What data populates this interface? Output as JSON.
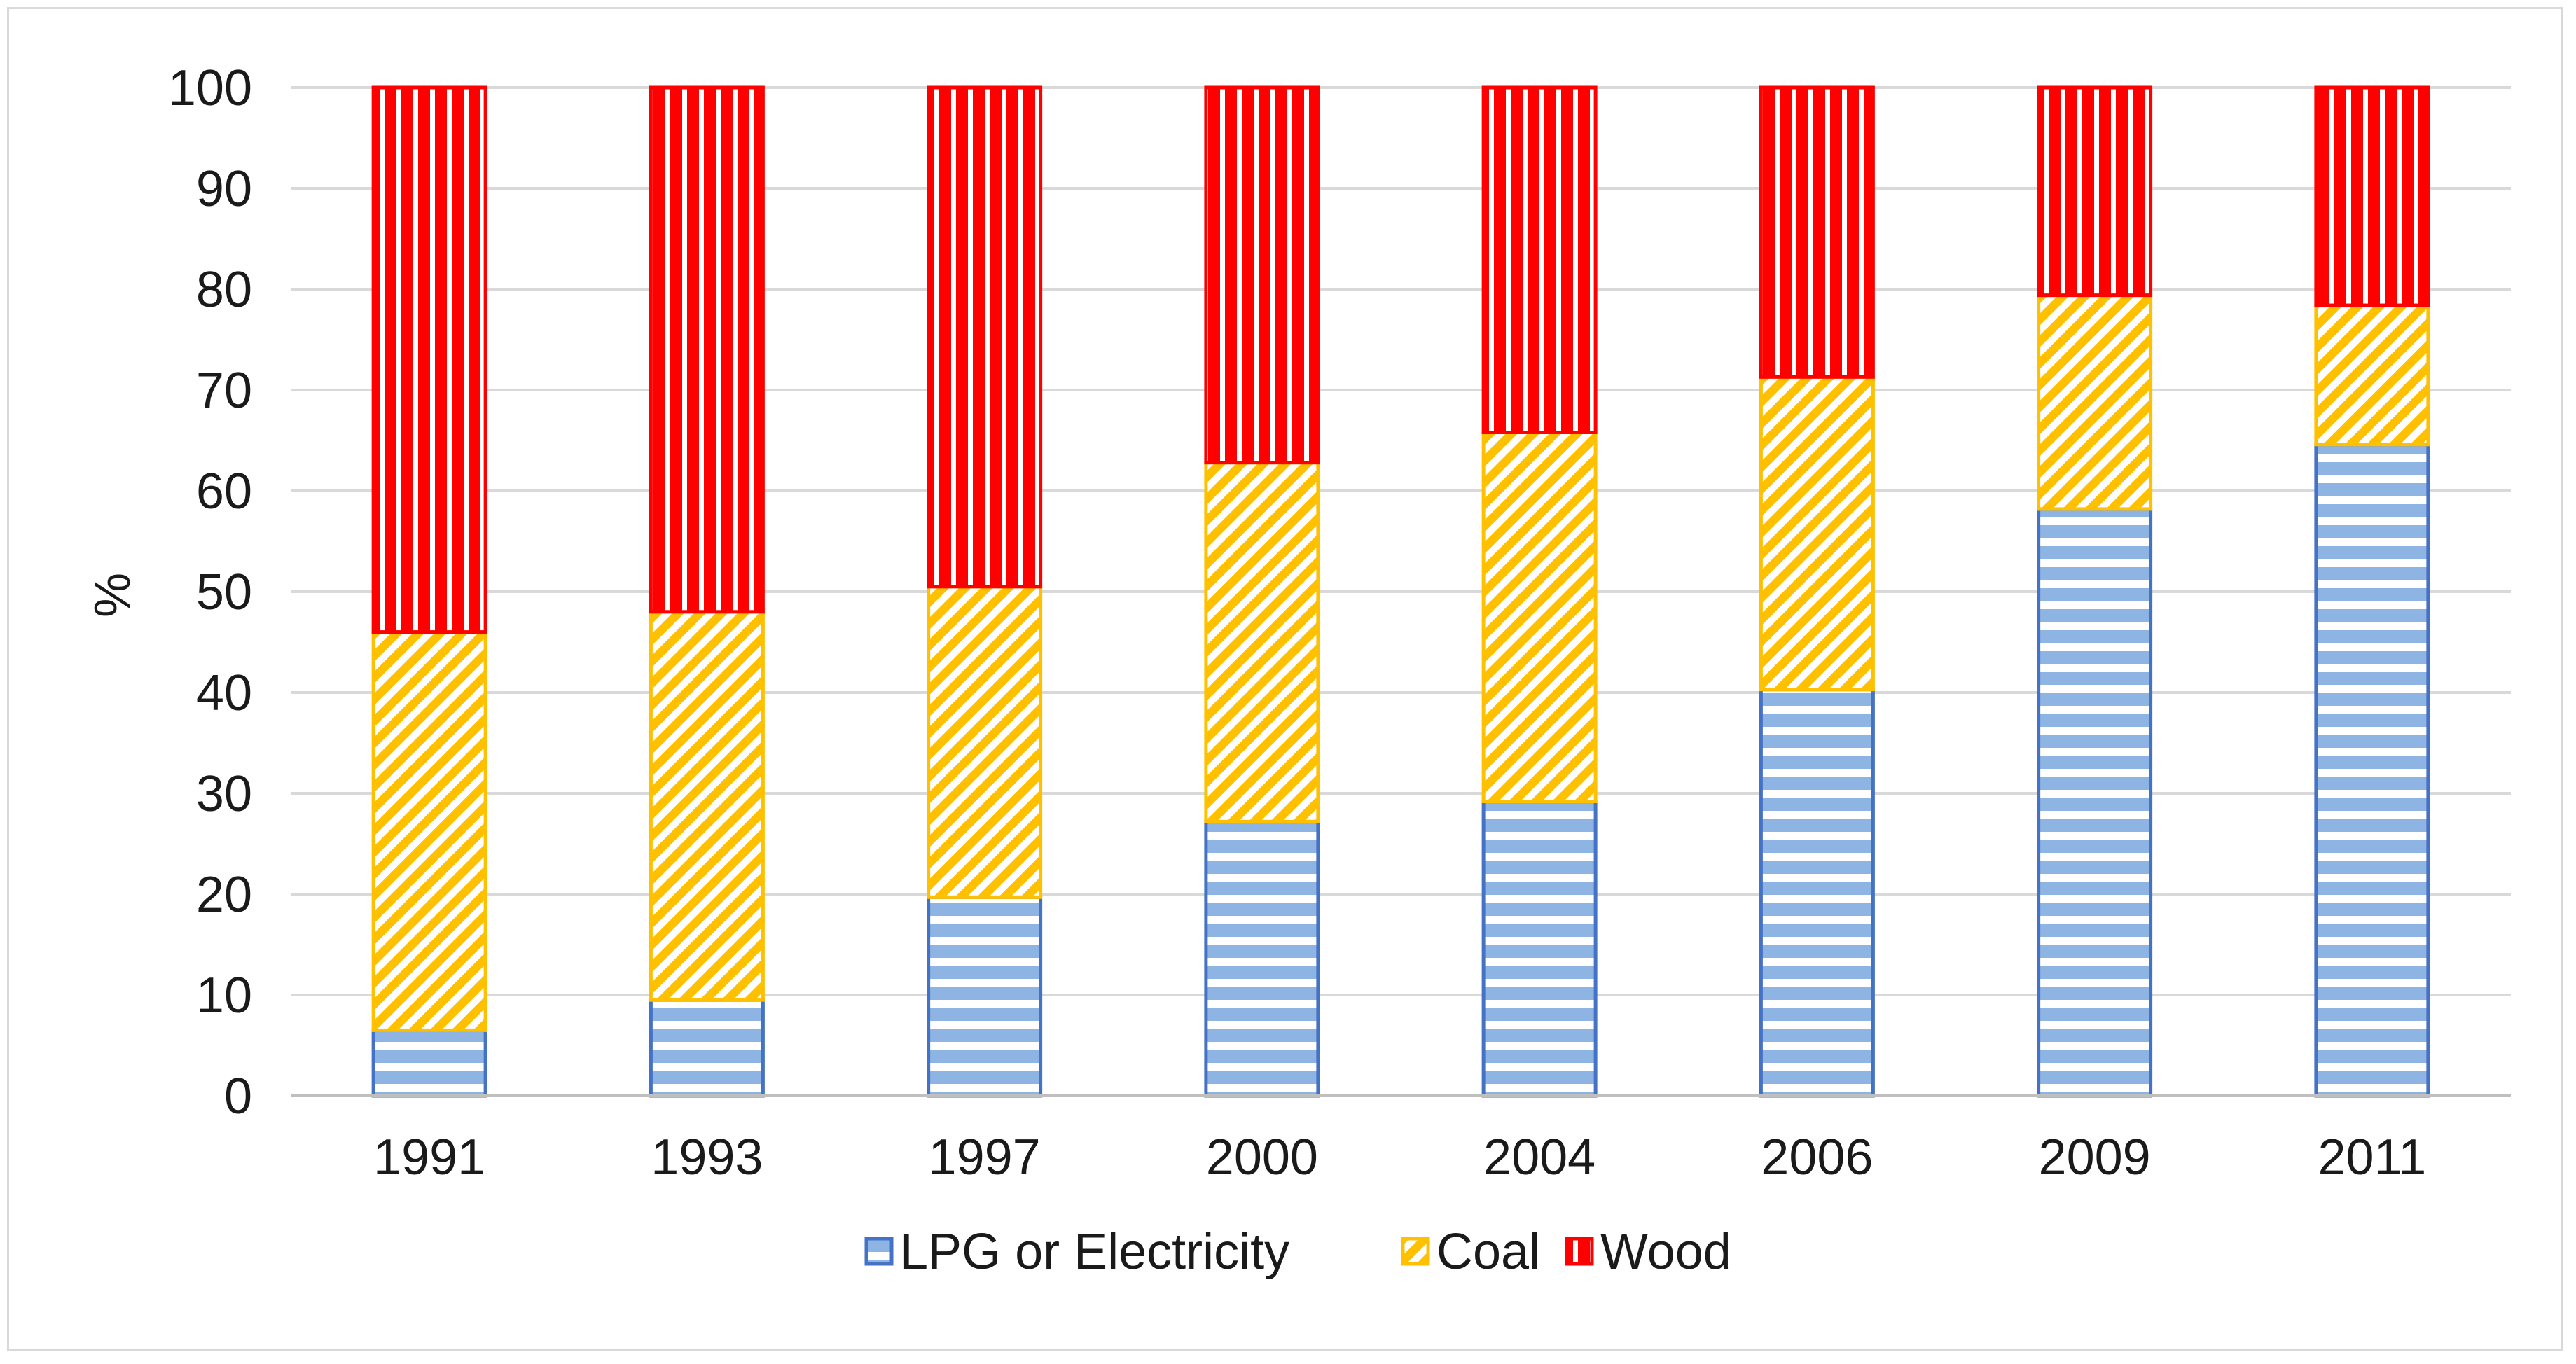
{
  "chart_data": {
    "type": "bar",
    "stacked": true,
    "title": "",
    "xlabel": "",
    "ylabel": "%",
    "ylim": [
      0,
      100
    ],
    "yticks": [
      "0",
      "10",
      "20",
      "30",
      "40",
      "50",
      "60",
      "70",
      "80",
      "90",
      "100"
    ],
    "categories": [
      "1991",
      "1993",
      "1997",
      "2000",
      "2004",
      "2006",
      "2009",
      "2011"
    ],
    "grid": true,
    "legend_position": "bottom-center",
    "series": [
      {
        "name": "LPG or Electricity",
        "key": "lpg",
        "color": "#4472C4",
        "stripe": "#8EB4E3",
        "pattern": "horizontal",
        "values": [
          6.5,
          9.5,
          19.7,
          27.2,
          29.2,
          40.3,
          58.2,
          64.6
        ]
      },
      {
        "name": "Coal",
        "key": "coal",
        "color": "#FFC000",
        "stripe": "#FFD966",
        "pattern": "diagonal",
        "values": [
          39.5,
          38.5,
          30.8,
          35.6,
          36.6,
          31.0,
          21.2,
          13.8
        ]
      },
      {
        "name": "Wood",
        "key": "wood",
        "color": "#FF0000",
        "stripe": "#FFFFFF",
        "pattern": "vertical",
        "values": [
          54.0,
          52.0,
          49.5,
          37.2,
          34.2,
          28.7,
          20.6,
          21.6
        ]
      }
    ]
  }
}
